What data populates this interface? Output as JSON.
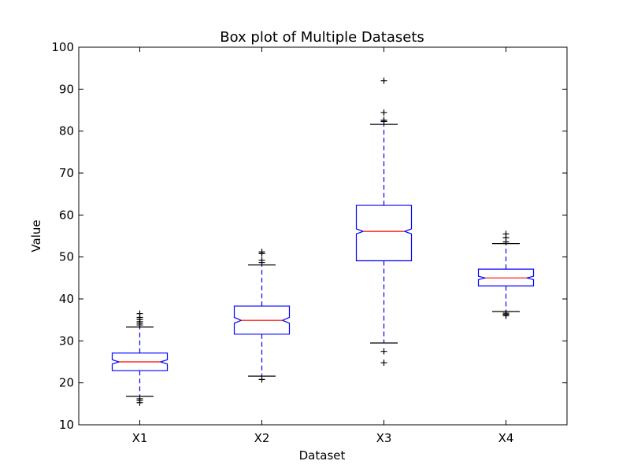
{
  "chart_data": {
    "type": "box",
    "title": "Box plot of Multiple Datasets",
    "xlabel": "Dataset",
    "ylabel": "Value",
    "ylim": [
      10,
      100
    ],
    "yticks": [
      10,
      20,
      30,
      40,
      50,
      60,
      70,
      80,
      90,
      100
    ],
    "ytick_labels": [
      "10",
      "20",
      "30",
      "40",
      "50",
      "60",
      "70",
      "80",
      "90",
      "100"
    ],
    "categories": [
      "X1",
      "X2",
      "X3",
      "X4"
    ],
    "notched": true,
    "boxes": [
      {
        "label": "X1",
        "whisker_low": 16.8,
        "q1": 22.9,
        "median": 25.0,
        "q3": 27.1,
        "whisker_high": 33.3,
        "notch_low": 24.5,
        "notch_high": 25.5,
        "outliers": [
          15.3,
          15.8,
          16.2,
          33.8,
          34.2,
          34.6,
          35.1,
          35.6,
          36.5
        ]
      },
      {
        "label": "X2",
        "whisker_low": 21.6,
        "q1": 31.6,
        "median": 34.9,
        "q3": 38.3,
        "whisker_high": 48.1,
        "notch_low": 34.2,
        "notch_high": 35.6,
        "outliers": [
          20.8,
          48.7,
          49.2,
          50.8,
          51.2
        ]
      },
      {
        "label": "X3",
        "whisker_low": 29.5,
        "q1": 49.1,
        "median": 56.1,
        "q3": 62.3,
        "whisker_high": 81.6,
        "notch_low": 55.5,
        "notch_high": 56.7,
        "outliers": [
          24.8,
          27.5,
          82.3,
          82.6,
          84.4,
          92.0
        ]
      },
      {
        "label": "X4",
        "whisker_low": 37.0,
        "q1": 43.1,
        "median": 45.0,
        "q3": 47.1,
        "whisker_high": 53.2,
        "notch_low": 44.6,
        "notch_high": 45.4,
        "outliers": [
          36.0,
          36.3,
          36.6,
          53.6,
          54.6,
          55.5
        ]
      }
    ],
    "colors": {
      "box": "#0000ff",
      "median": "#ff0000",
      "whisker": "#0000ff",
      "cap": "#000000",
      "flier": "#000000",
      "axes": "#000000",
      "background": "#ffffff"
    },
    "grid": false
  }
}
